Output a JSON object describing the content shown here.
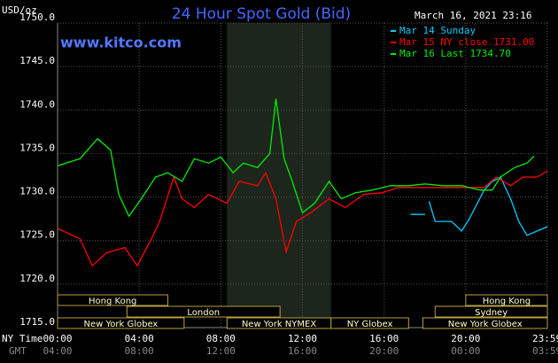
{
  "chart_data": {
    "type": "line",
    "title": "24 Hour Spot Gold (Bid)",
    "subtitle": "www.kitco.com",
    "timestamp": "March 16, 2021 23:16",
    "y_label": "USD/oz",
    "x_row_label": "NY Time",
    "x2_row_label": "GMT",
    "xlim": [
      0,
      24
    ],
    "xticks": [
      {
        "value": 0,
        "label": "00:00"
      },
      {
        "value": 4,
        "label": "04:00"
      },
      {
        "value": 8,
        "label": "08:00"
      },
      {
        "value": 12,
        "label": "12:00"
      },
      {
        "value": 16,
        "label": "16:00"
      },
      {
        "value": 20,
        "label": "20:00"
      },
      {
        "value": 23.98,
        "label": "23:59"
      }
    ],
    "gmt_ticks": [
      "04:00",
      "08:00",
      "12:00",
      "16:00",
      "20:00",
      "00:00",
      "03:59"
    ],
    "ylim": [
      1715,
      1750
    ],
    "yticks": [
      {
        "value": 1715,
        "label": "1715.0"
      },
      {
        "value": 1720,
        "label": "1720.0"
      },
      {
        "value": 1725,
        "label": "1725.0"
      },
      {
        "value": 1730,
        "label": "1730.0"
      },
      {
        "value": 1735,
        "label": "1735.0"
      },
      {
        "value": 1740,
        "label": "1740.0"
      },
      {
        "value": 1745,
        "label": "1745.0"
      },
      {
        "value": 1750,
        "label": "1750.0"
      }
    ],
    "grid": true,
    "series": [
      {
        "name": "Mar 14 Sunday",
        "color": "#00ccff",
        "x": [
          17.3,
          18.0,
          18.1,
          18.2,
          18.5,
          19.3,
          19.8,
          20.2,
          20.9,
          21.3,
          21.7,
          22.2,
          22.6,
          23.0,
          23.5,
          24.0
        ],
        "values": [
          1728,
          1728,
          null,
          1729.5,
          1727.2,
          1727.2,
          1726.1,
          1727.6,
          1730.8,
          1731.8,
          1732.3,
          1729.8,
          1727.2,
          1725.6,
          1726.1,
          1726.6
        ]
      },
      {
        "name": "Mar 15 NY close 1731.00",
        "color": "#ff0000",
        "x": [
          0,
          1.1,
          1.7,
          2.4,
          3.3,
          3.9,
          4.6,
          5.0,
          5.7,
          6.1,
          6.7,
          7.4,
          8.3,
          8.9,
          9.8,
          10.2,
          10.7,
          11.2,
          11.7,
          12.4,
          13.3,
          14.1,
          15.0,
          15.9,
          16.7,
          17.6,
          18.5,
          19.8,
          20.9,
          21.5,
          22.2,
          22.8,
          23.5,
          24.0
        ],
        "values": [
          1726.4,
          1725.2,
          1722.1,
          1723.6,
          1724.2,
          1722.1,
          1725.2,
          1727.2,
          1732.3,
          1729.8,
          1728.8,
          1730.3,
          1729.3,
          1731.8,
          1731.3,
          1732.8,
          1729.8,
          1723.7,
          1727.2,
          1728.2,
          1729.8,
          1728.8,
          1730.3,
          1730.5,
          1731.1,
          1731.1,
          1731.1,
          1731.1,
          1731.1,
          1732.3,
          1731.3,
          1732.3,
          1732.3,
          1733
        ]
      },
      {
        "name": "Mar 16 Last 1734.70",
        "color": "#00ee00",
        "x": [
          0,
          1.1,
          1.96,
          2.6,
          3.0,
          3.5,
          4.1,
          4.8,
          5.4,
          6.1,
          6.7,
          7.4,
          8.0,
          8.6,
          9.1,
          9.8,
          10.4,
          10.7,
          11.1,
          11.5,
          12.0,
          12.6,
          13.3,
          13.9,
          14.6,
          15.4,
          16.3,
          17.2,
          18.0,
          18.9,
          19.8,
          20.7,
          21.3,
          21.7,
          22.4,
          23.0,
          23.35
        ],
        "values": [
          1733.6,
          1734.4,
          1736.7,
          1735.4,
          1730.3,
          1727.8,
          1729.8,
          1732.3,
          1732.8,
          1731.8,
          1734.4,
          1733.9,
          1734.6,
          1732.8,
          1733.9,
          1733.4,
          1735,
          1741.3,
          1734.4,
          1731.8,
          1728.2,
          1729.3,
          1731.8,
          1729.8,
          1730.5,
          1730.8,
          1731.3,
          1731.3,
          1731.5,
          1731.3,
          1731.3,
          1730.8,
          1730.8,
          1732.3,
          1733.4,
          1733.9,
          1734.7
        ]
      }
    ],
    "session_rows": [
      [
        {
          "label": "Hong Kong",
          "start": 0,
          "end": 5.4
        },
        {
          "label": "Hong Kong",
          "start": 20.0,
          "end": 24
        }
      ],
      [
        {
          "label": "London",
          "start": 3.4,
          "end": 10.9
        },
        {
          "label": "Sydney",
          "start": 18.5,
          "end": 24
        }
      ],
      [
        {
          "label": "New York Globex",
          "start": 0,
          "end": 6.2
        },
        {
          "label": "New York NYMEX",
          "start": 8.3,
          "end": 13.4,
          "highlight": true
        },
        {
          "label": "NY Globex",
          "start": 13.4,
          "end": 17.2
        },
        {
          "label": "New York Globex",
          "start": 17.9,
          "end": 24
        }
      ]
    ]
  }
}
